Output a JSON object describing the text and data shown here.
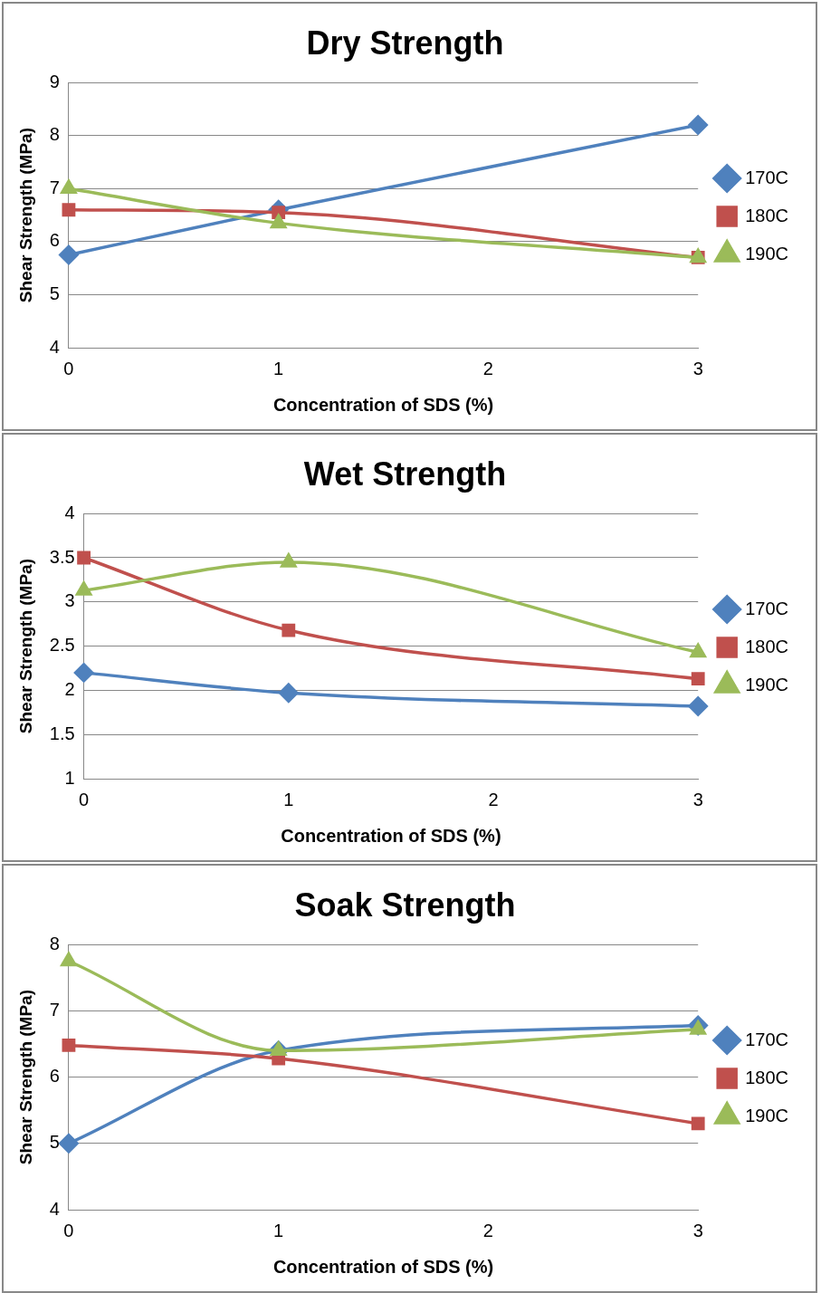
{
  "chart_data": [
    {
      "type": "line",
      "title": "Dry Strength",
      "xlabel": "Concentration of SDS (%)",
      "ylabel": "Shear Strength (MPa)",
      "x": [
        0,
        1,
        3
      ],
      "xlim": [
        0,
        3
      ],
      "xticks": [
        0,
        1,
        2,
        3
      ],
      "ylim": [
        4,
        9
      ],
      "yticks": [
        4,
        5,
        6,
        7,
        8,
        9
      ],
      "grid": "y",
      "legend": "right",
      "series": [
        {
          "name": "170C",
          "color": "#4f81bd",
          "marker": "diamond",
          "values": [
            5.75,
            6.6,
            8.2
          ]
        },
        {
          "name": "180C",
          "color": "#c0504d",
          "marker": "square",
          "values": [
            6.6,
            6.55,
            5.7
          ]
        },
        {
          "name": "190C",
          "color": "#9bbb59",
          "marker": "triangle",
          "values": [
            7.0,
            6.35,
            5.7
          ]
        }
      ]
    },
    {
      "type": "line",
      "title": "Wet Strength",
      "xlabel": "Concentration of SDS (%)",
      "ylabel": "Shear Strength (MPa)",
      "x": [
        0,
        1,
        3
      ],
      "xlim": [
        0,
        3
      ],
      "xticks": [
        0,
        1,
        2,
        3
      ],
      "ylim": [
        1,
        4
      ],
      "yticks": [
        1,
        1.5,
        2,
        2.5,
        3,
        3.5,
        4
      ],
      "grid": "y",
      "legend": "right",
      "series": [
        {
          "name": "170C",
          "color": "#4f81bd",
          "marker": "diamond",
          "values": [
            2.2,
            1.97,
            1.82
          ]
        },
        {
          "name": "180C",
          "color": "#c0504d",
          "marker": "square",
          "values": [
            3.5,
            2.68,
            2.13
          ]
        },
        {
          "name": "190C",
          "color": "#9bbb59",
          "marker": "triangle",
          "values": [
            3.13,
            3.45,
            2.43
          ]
        }
      ]
    },
    {
      "type": "line",
      "title": "Soak Strength",
      "xlabel": "Concentration of SDS (%)",
      "ylabel": "Shear Strength (MPa)",
      "x": [
        0,
        1,
        3
      ],
      "xlim": [
        0,
        3
      ],
      "xticks": [
        0,
        1,
        2,
        3
      ],
      "ylim": [
        4,
        8
      ],
      "yticks": [
        4,
        5,
        6,
        7,
        8
      ],
      "grid": "y",
      "legend": "right",
      "series": [
        {
          "name": "170C",
          "color": "#4f81bd",
          "marker": "diamond",
          "values": [
            5.0,
            6.4,
            6.78
          ]
        },
        {
          "name": "180C",
          "color": "#c0504d",
          "marker": "square",
          "values": [
            6.48,
            6.28,
            5.3
          ]
        },
        {
          "name": "190C",
          "color": "#9bbb59",
          "marker": "triangle",
          "values": [
            7.75,
            6.4,
            6.72
          ]
        }
      ]
    }
  ]
}
